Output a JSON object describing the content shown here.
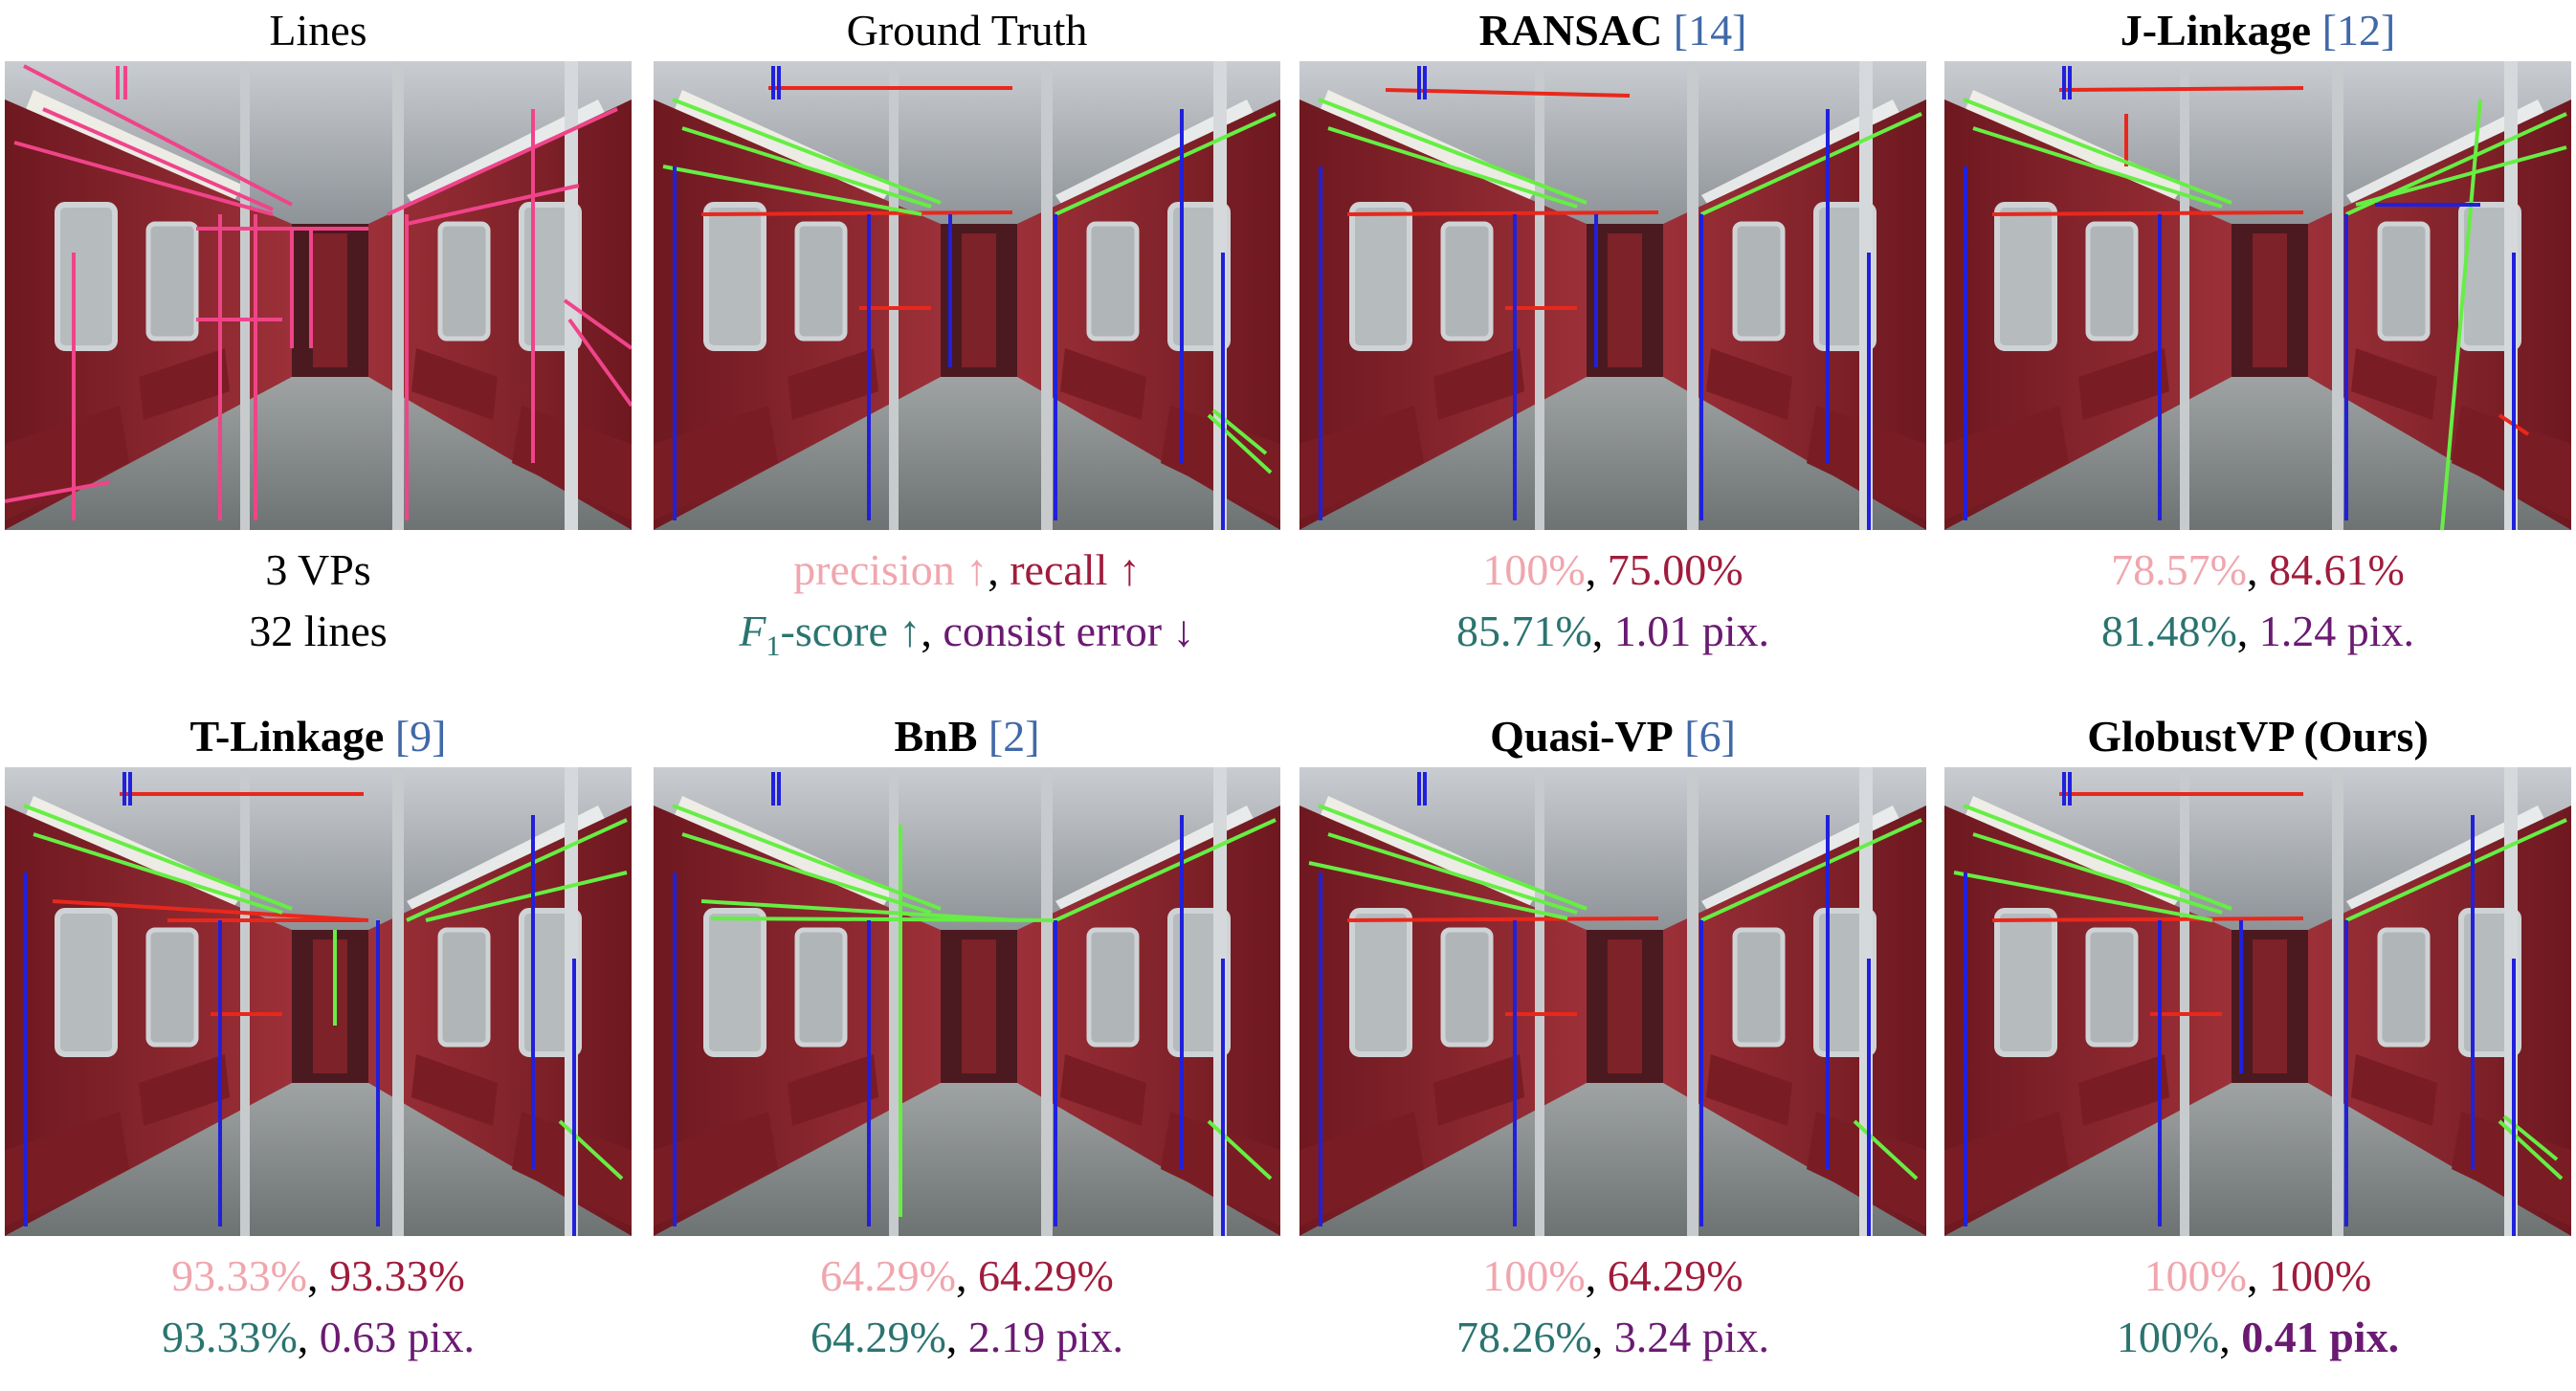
{
  "colors": {
    "precision": "#f0a6ae",
    "recall": "#a01c3c",
    "f1": "#2a7470",
    "error": "#6b1a72",
    "reference": "#4169a8",
    "line_detected": "#f0448a",
    "vp_red": "#e8281c",
    "vp_green": "#66ee44",
    "vp_blue": "#2020dd"
  },
  "panels": [
    {
      "title": "Lines",
      "bold": false,
      "ref": "",
      "line_color": "pink",
      "info": {
        "vps": "3 VPs",
        "lines": "32 lines"
      }
    },
    {
      "title": "Ground Truth",
      "bold": false,
      "ref": "",
      "line_color": "rgb",
      "legend": {
        "precision": "precision ↑",
        "recall": "recall ↑",
        "f1_symbol": "F",
        "f1_sub": "1",
        "f1_rest": "-score ↑",
        "error": "consist error ↓"
      }
    },
    {
      "title": "RANSAC",
      "bold": true,
      "ref": "14",
      "metrics": {
        "precision": "100%",
        "recall": "75.00%",
        "f1": "85.71%",
        "error": "1.01 pix."
      }
    },
    {
      "title": "J-Linkage",
      "bold": true,
      "ref": "12",
      "metrics": {
        "precision": "78.57%",
        "recall": "84.61%",
        "f1": "81.48%",
        "error": "1.24 pix."
      }
    },
    {
      "title": "T-Linkage",
      "bold": true,
      "ref": "9",
      "metrics": {
        "precision": "93.33%",
        "recall": "93.33%",
        "f1": "93.33%",
        "error": "0.63 pix."
      }
    },
    {
      "title": "BnB",
      "bold": true,
      "ref": "2",
      "metrics": {
        "precision": "64.29%",
        "recall": "64.29%",
        "f1": "64.29%",
        "error": "2.19 pix."
      }
    },
    {
      "title": "Quasi-VP",
      "bold": true,
      "ref": "6",
      "metrics": {
        "precision": "100%",
        "recall": "64.29%",
        "f1": "78.26%",
        "error": "3.24 pix."
      }
    },
    {
      "title": "GlobustVP (Ours)",
      "bold": true,
      "ref": "",
      "metrics": {
        "precision": "100%",
        "recall": "100%",
        "f1": "100%",
        "error": "0.41 pix."
      },
      "error_bold": true
    }
  ]
}
